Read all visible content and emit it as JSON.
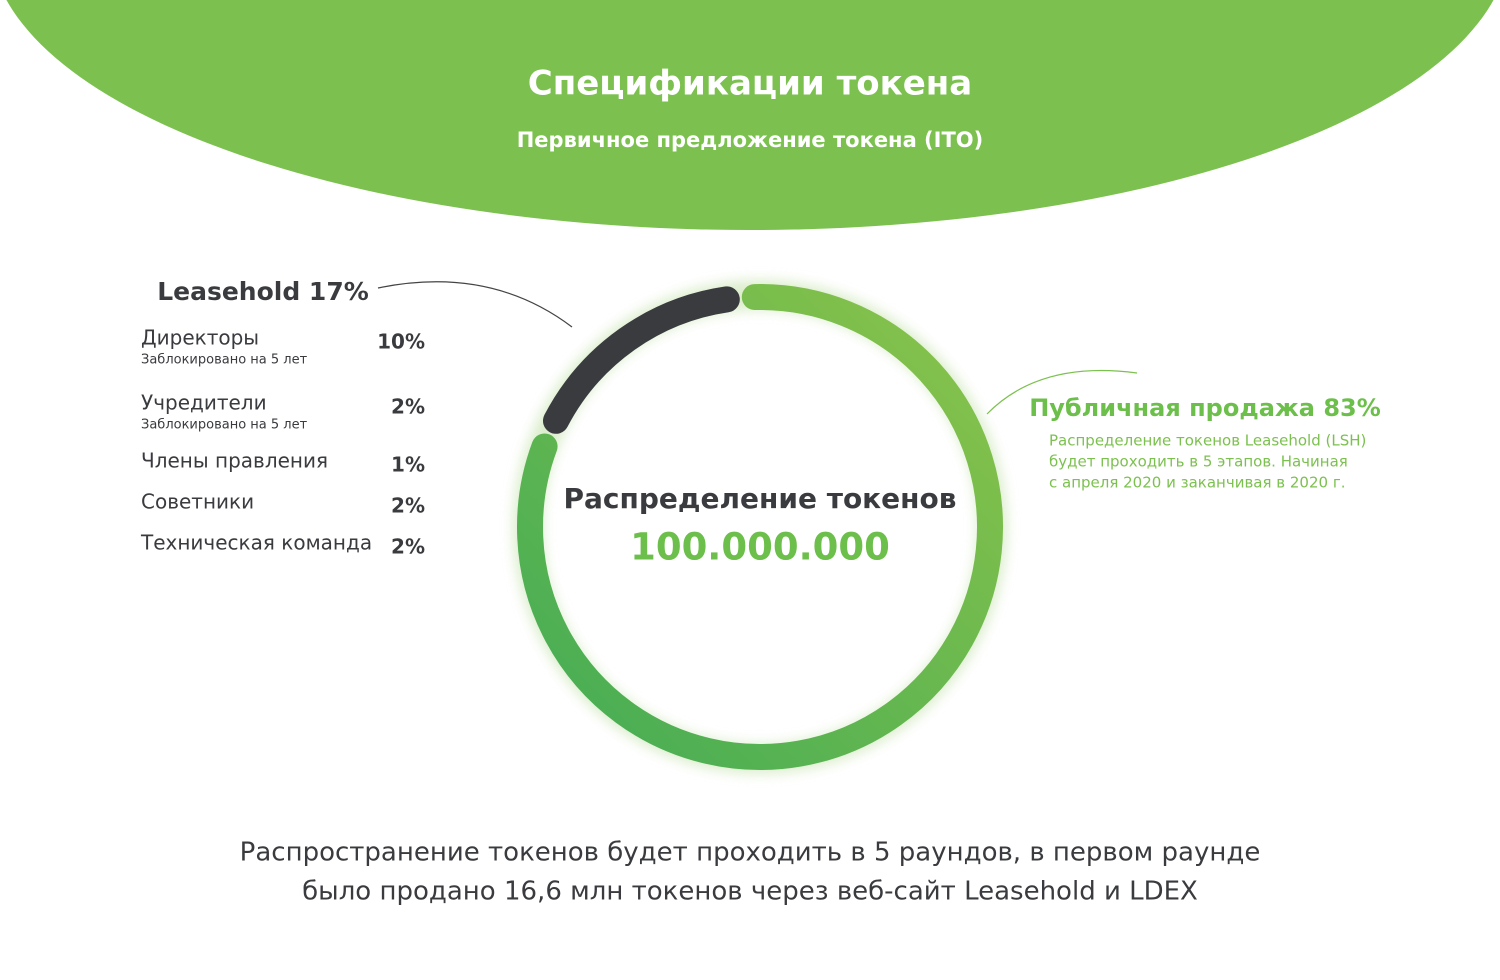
{
  "header": {
    "title": "Спецификации токена",
    "subtitle": "Первичное предложение токена (ITO)"
  },
  "chart_data": {
    "type": "donut",
    "center_title": "Распределение токенов",
    "center_value": "100.000.000",
    "categories": [
      "Leasehold 17%",
      "Публичная продажа 83%"
    ],
    "values": [
      17,
      83
    ],
    "colors": [
      "#3a3b3f",
      "#6cbf4a"
    ]
  },
  "breakdown": [
    {
      "name": "Директоры",
      "note": "Заблокировано на 5 лет",
      "share": "10%"
    },
    {
      "name": "Учредители",
      "note": "Заблокировано на 5 лет",
      "share": "2%"
    },
    {
      "name": "Члены правления",
      "share": "1%"
    },
    {
      "name": "Советники",
      "share": "2%"
    },
    {
      "name": "Техническая команда",
      "share": "2%"
    }
  ],
  "public_note": [
    "Распределение токенов Leasehold (LSH)",
    "будет проходить в 5 этапов. Начиная",
    "с апреля 2020 и заканчивая в 2020 г."
  ],
  "footer": [
    "Распространение токенов будет проходить в 5 раундов, в первом раунде",
    "было продано 16,6 млн токенов через веб-сайт Leasehold и LDEX"
  ]
}
